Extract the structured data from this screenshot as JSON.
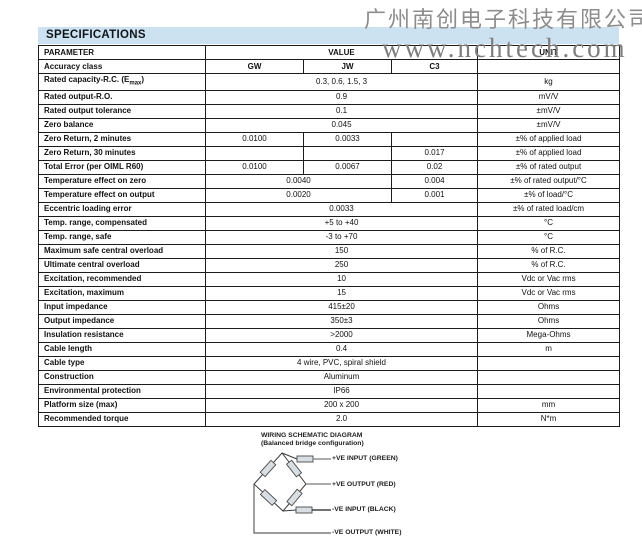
{
  "watermark": {
    "company": "广州南创电子科技有限公司",
    "website": "www.nchtech.com"
  },
  "section_title": "SPECIFICATIONS",
  "colors": {
    "band_background": "#cde2f0",
    "table_border": "#1c1c1c",
    "watermark_gray": "#8d8d8d",
    "resistor_fill": "#d9dee3",
    "wire_gray": "#8f8f8f",
    "wire_black": "#1e1e1e"
  },
  "table": {
    "header": {
      "parameter": "PARAMETER",
      "value": "VALUE",
      "unit": "UNIT"
    },
    "rows": [
      {
        "param": "Accuracy class",
        "values": [
          {
            "text": "GW",
            "span": 1,
            "bold": true
          },
          {
            "text": "JW",
            "span": 1,
            "bold": true
          },
          {
            "text": "C3",
            "span": 1,
            "bold": true
          }
        ],
        "unit": ""
      },
      {
        "param": "Rated capacity-R.C. (E{max})",
        "values": [
          {
            "text": "0.3, 0.6, 1.5, 3",
            "span": 3
          }
        ],
        "unit": "kg"
      },
      {
        "param": "Rated output-R.O.",
        "values": [
          {
            "text": "0.9",
            "span": 3
          }
        ],
        "unit": "mV/V"
      },
      {
        "param": "Rated output tolerance",
        "values": [
          {
            "text": "0.1",
            "span": 3
          }
        ],
        "unit": "±mV/V"
      },
      {
        "param": "Zero balance",
        "values": [
          {
            "text": "0.045",
            "span": 3
          }
        ],
        "unit": "±mV/V"
      },
      {
        "param": "Zero Return, 2 minutes",
        "values": [
          {
            "text": "0.0100",
            "span": 1
          },
          {
            "text": "0.0033",
            "span": 1
          },
          {
            "text": "",
            "span": 1
          }
        ],
        "unit": "±% of applied load"
      },
      {
        "param": "Zero Return, 30 minutes",
        "values": [
          {
            "text": "",
            "span": 1
          },
          {
            "text": "",
            "span": 1
          },
          {
            "text": "0.017",
            "span": 1
          }
        ],
        "unit": "±% of applied load"
      },
      {
        "param": "Total Error (per OIML R60)",
        "values": [
          {
            "text": "0.0100",
            "span": 1
          },
          {
            "text": "0.0067",
            "span": 1
          },
          {
            "text": "0.02",
            "span": 1
          }
        ],
        "unit": "±% of rated output"
      },
      {
        "param": "Temperature effect on zero",
        "values": [
          {
            "text": "0.0040",
            "span": 2
          },
          {
            "text": "0.004",
            "span": 1
          }
        ],
        "unit": "±% of rated output/°C"
      },
      {
        "param": "Temperature effect on output",
        "values": [
          {
            "text": "0.0020",
            "span": 2
          },
          {
            "text": "0.001",
            "span": 1
          }
        ],
        "unit": "±% of load/°C"
      },
      {
        "param": "Eccentric loading error",
        "values": [
          {
            "text": "0.0033",
            "span": 3
          }
        ],
        "unit": "±% of rated load/cm"
      },
      {
        "param": "Temp. range, compensated",
        "values": [
          {
            "text": "+5 to +40",
            "span": 3
          }
        ],
        "unit": "°C"
      },
      {
        "param": "Temp. range, safe",
        "values": [
          {
            "text": "-3 to +70",
            "span": 3
          }
        ],
        "unit": "°C"
      },
      {
        "param": "Maximum safe central overload",
        "values": [
          {
            "text": "150",
            "span": 3
          }
        ],
        "unit": "% of R.C."
      },
      {
        "param": "Ultimate central overload",
        "values": [
          {
            "text": "250",
            "span": 3
          }
        ],
        "unit": "% of R.C."
      },
      {
        "param": "Excitation, recommended",
        "values": [
          {
            "text": "10",
            "span": 3
          }
        ],
        "unit": "Vdc or Vac rms"
      },
      {
        "param": "Excitation, maximum",
        "values": [
          {
            "text": "15",
            "span": 3
          }
        ],
        "unit": "Vdc or Vac rms"
      },
      {
        "param": "Input impedance",
        "values": [
          {
            "text": "415±20",
            "span": 3
          }
        ],
        "unit": "Ohms"
      },
      {
        "param": "Output impedance",
        "values": [
          {
            "text": "350±3",
            "span": 3
          }
        ],
        "unit": "Ohms"
      },
      {
        "param": "Insulation resistance",
        "values": [
          {
            "text": ">2000",
            "span": 3
          }
        ],
        "unit": "Mega-Ohms"
      },
      {
        "param": "Cable length",
        "values": [
          {
            "text": "0.4",
            "span": 3
          }
        ],
        "unit": "m"
      },
      {
        "param": "Cable type",
        "values": [
          {
            "text": "4 wire, PVC, spiral shield",
            "span": 3
          }
        ],
        "unit": ""
      },
      {
        "param": "Construction",
        "values": [
          {
            "text": "Aluminum",
            "span": 3
          }
        ],
        "unit": ""
      },
      {
        "param": "Environmental protection",
        "values": [
          {
            "text": "IP66",
            "span": 3
          }
        ],
        "unit": ""
      },
      {
        "param": "Platform size (max)",
        "values": [
          {
            "text": "200 x 200",
            "span": 3
          }
        ],
        "unit": "mm"
      },
      {
        "param": "Recommended torque",
        "values": [
          {
            "text": "2.0",
            "span": 3
          }
        ],
        "unit": "N*m"
      }
    ]
  },
  "diagram": {
    "title": "WIRING SCHEMATIC DIAGRAM",
    "subtitle": "(Balanced bridge configuration)",
    "labels": [
      "+VE INPUT (GREEN)",
      "+VE OUTPUT (RED)",
      "-VE INPUT (BLACK)",
      "-VE OUTPUT (WHITE)"
    ]
  }
}
